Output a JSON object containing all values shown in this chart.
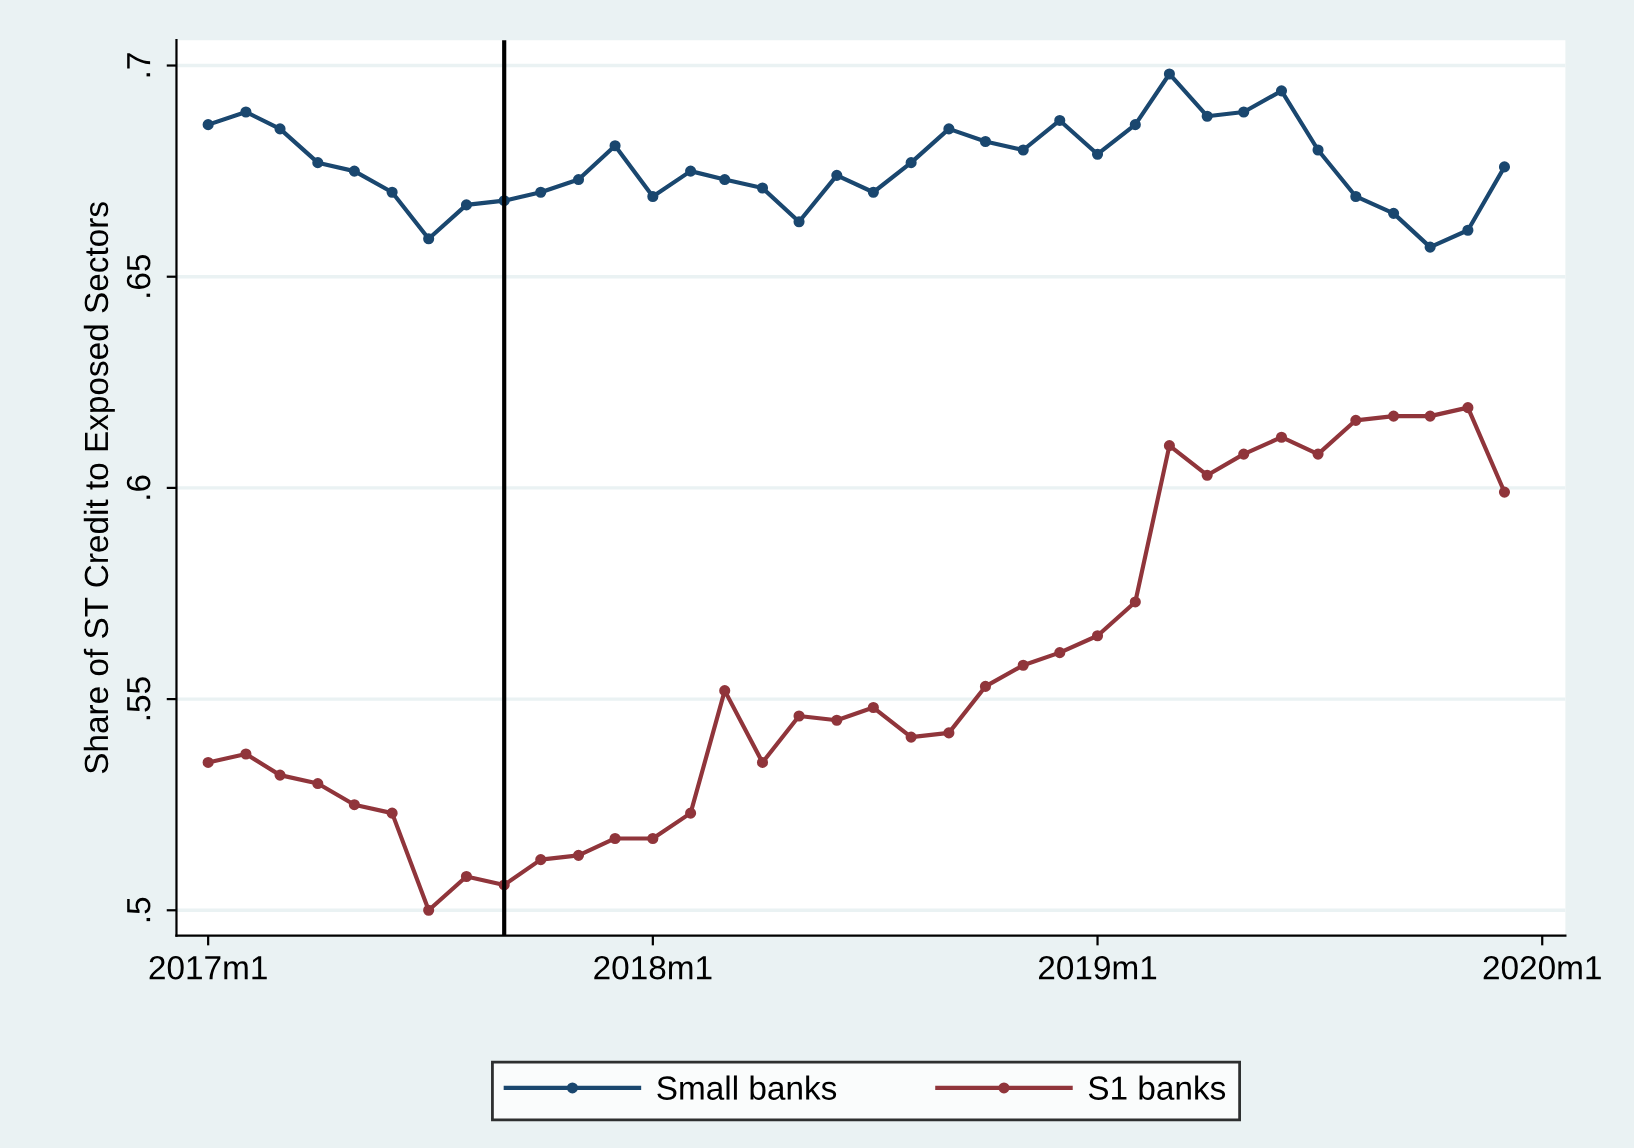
{
  "chart_data": {
    "type": "line",
    "ylabel": "Share of ST Credit to Exposed Sectors",
    "x": [
      "2017-01",
      "2017-02",
      "2017-03",
      "2017-04",
      "2017-05",
      "2017-06",
      "2017-07",
      "2017-08",
      "2017-09",
      "2017-10",
      "2017-11",
      "2017-12",
      "2018-01",
      "2018-02",
      "2018-03",
      "2018-04",
      "2018-05",
      "2018-06",
      "2018-07",
      "2018-08",
      "2018-09",
      "2018-10",
      "2018-11",
      "2018-12",
      "2019-01",
      "2019-02",
      "2019-03",
      "2019-04",
      "2019-05",
      "2019-06",
      "2019-07",
      "2019-08",
      "2019-09",
      "2019-10",
      "2019-11",
      "2019-12"
    ],
    "series": [
      {
        "name": "Small banks",
        "color": "#1a476f",
        "values": [
          0.686,
          0.689,
          0.685,
          0.677,
          0.675,
          0.67,
          0.659,
          0.667,
          0.668,
          0.67,
          0.673,
          0.681,
          0.669,
          0.675,
          0.673,
          0.671,
          0.663,
          0.674,
          0.67,
          0.677,
          0.685,
          0.682,
          0.68,
          0.687,
          0.679,
          0.686,
          0.698,
          0.688,
          0.689,
          0.694,
          0.68,
          0.669,
          0.665,
          0.657,
          0.661,
          0.676
        ]
      },
      {
        "name": "S1 banks",
        "color": "#90353b",
        "values": [
          0.535,
          0.537,
          0.532,
          0.53,
          0.525,
          0.523,
          0.5,
          0.508,
          0.506,
          0.512,
          0.513,
          0.517,
          0.517,
          0.523,
          0.552,
          0.535,
          0.546,
          0.545,
          0.548,
          0.541,
          0.542,
          0.553,
          0.558,
          0.561,
          0.565,
          0.573,
          0.61,
          0.603,
          0.608,
          0.612,
          0.608,
          0.616,
          0.617,
          0.617,
          0.619,
          0.599
        ]
      }
    ],
    "xlim": [
      "2016-12-06",
      "2020-01-20"
    ],
    "xticks": [
      {
        "value": "2017-01",
        "label": "2017m1"
      },
      {
        "value": "2018-01",
        "label": "2018m1"
      },
      {
        "value": "2019-01",
        "label": "2019m1"
      },
      {
        "value": "2020-01",
        "label": "2020m1"
      }
    ],
    "ylim": [
      0.494,
      0.706
    ],
    "yticks": [
      {
        "value": 0.5,
        "label": ".5"
      },
      {
        "value": 0.55,
        "label": ".55"
      },
      {
        "value": 0.6,
        "label": ".6"
      },
      {
        "value": 0.65,
        "label": ".65"
      },
      {
        "value": 0.7,
        "label": ".7"
      }
    ],
    "ref_lines": [
      {
        "axis": "x",
        "value": "2017-09",
        "color": "#000000"
      }
    ],
    "grid": "y",
    "legend": "bottom",
    "marker": "circle",
    "line_style": "solid"
  }
}
